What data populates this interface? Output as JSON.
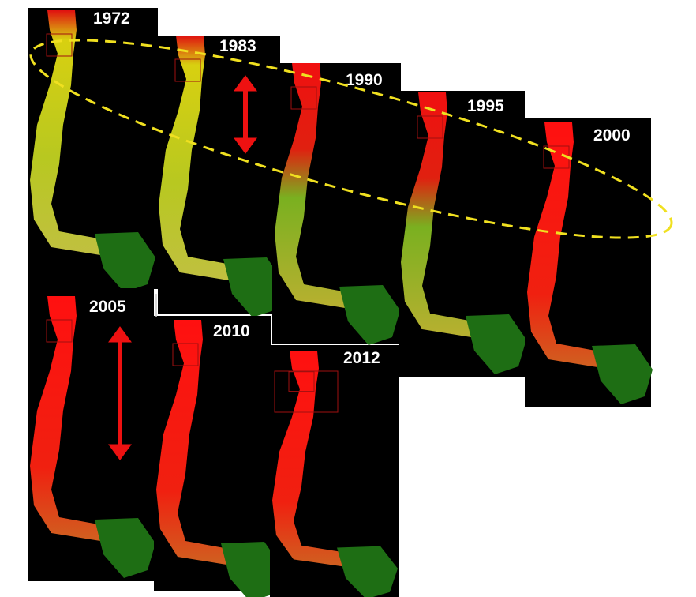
{
  "panels": [
    {
      "year": "1972"
    },
    {
      "year": "1983"
    },
    {
      "year": "1990"
    },
    {
      "year": "1995"
    },
    {
      "year": "2000"
    },
    {
      "year": "2005"
    },
    {
      "year": "2010"
    },
    {
      "year": "2012"
    }
  ]
}
